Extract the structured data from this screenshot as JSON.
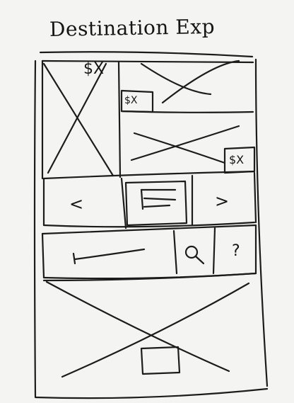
{
  "title": "Destination Exp",
  "main_image": {
    "price": "$X"
  },
  "top_image": {
    "price": "$X"
  },
  "second_image": {
    "price": "$X"
  },
  "carousel": {
    "prev_glyph": "<",
    "next_glyph": ">"
  },
  "search_bar": {
    "search_icon": "search-icon",
    "help_glyph": "?"
  }
}
